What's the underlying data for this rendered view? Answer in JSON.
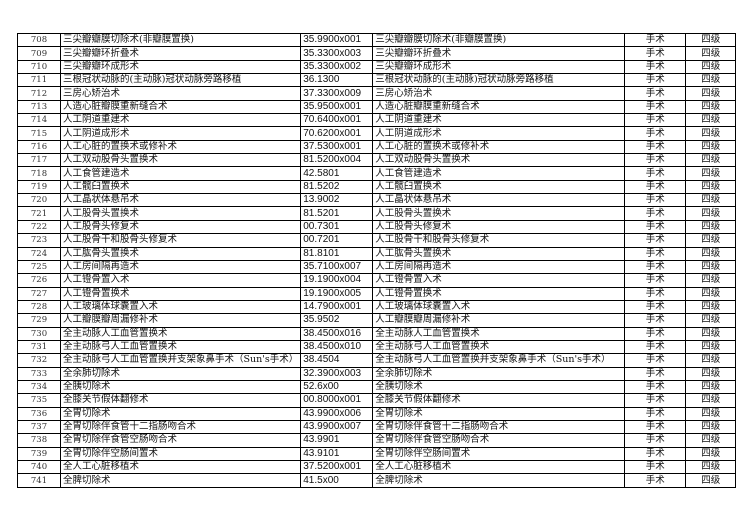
{
  "table": {
    "rows": [
      {
        "no": "708",
        "name": "三尖瓣瓣膜切除术(非瓣膜置换)",
        "code": "35.9900x001",
        "name2": "三尖瓣瓣膜切除术(非瓣膜置换)",
        "type": "手术",
        "grade": "四级"
      },
      {
        "no": "709",
        "name": "三尖瓣瓣环折叠术",
        "code": "35.3300x003",
        "name2": "三尖瓣瓣环折叠术",
        "type": "手术",
        "grade": "四级"
      },
      {
        "no": "710",
        "name": "三尖瓣瓣环成形术",
        "code": "35.3300x002",
        "name2": "三尖瓣瓣环成形术",
        "type": "手术",
        "grade": "四级"
      },
      {
        "no": "711",
        "name": "三根冠状动脉的(主动脉)冠状动脉旁路移植",
        "code": "36.1300",
        "name2": "三根冠状动脉的(主动脉)冠状动脉旁路移植",
        "type": "手术",
        "grade": "四级"
      },
      {
        "no": "712",
        "name": "三房心矫治术",
        "code": "37.3300x009",
        "name2": "三房心矫治术",
        "type": "手术",
        "grade": "四级"
      },
      {
        "no": "713",
        "name": "人造心脏瓣膜重新缝合术",
        "code": "35.9500x001",
        "name2": "人造心脏瓣膜重新缝合术",
        "type": "手术",
        "grade": "四级"
      },
      {
        "no": "714",
        "name": "人工阴道重建术",
        "code": "70.6400x001",
        "name2": "人工阴道重建术",
        "type": "手术",
        "grade": "四级"
      },
      {
        "no": "715",
        "name": "人工阴道成形术",
        "code": "70.6200x001",
        "name2": "人工阴道成形术",
        "type": "手术",
        "grade": "四级"
      },
      {
        "no": "716",
        "name": "人工心脏的置换术或修补术",
        "code": "37.5300x001",
        "name2": "人工心脏的置换术或修补术",
        "type": "手术",
        "grade": "四级"
      },
      {
        "no": "717",
        "name": "人工双动股骨头置换术",
        "code": "81.5200x004",
        "name2": "人工双动股骨头置换术",
        "type": "手术",
        "grade": "四级"
      },
      {
        "no": "718",
        "name": "人工食管建造术",
        "code": "42.5801",
        "name2": "人工食管建造术",
        "type": "手术",
        "grade": "四级"
      },
      {
        "no": "719",
        "name": "人工髋臼置换术",
        "code": "81.5202",
        "name2": "人工髋臼置换术",
        "type": "手术",
        "grade": "四级"
      },
      {
        "no": "720",
        "name": "人工晶状体悬吊术",
        "code": "13.9002",
        "name2": "人工晶状体悬吊术",
        "type": "手术",
        "grade": "四级"
      },
      {
        "no": "721",
        "name": "人工股骨头置换术",
        "code": "81.5201",
        "name2": "人工股骨头置换术",
        "type": "手术",
        "grade": "四级"
      },
      {
        "no": "722",
        "name": "人工股骨头修复术",
        "code": "00.7301",
        "name2": "人工股骨头修复术",
        "type": "手术",
        "grade": "四级"
      },
      {
        "no": "723",
        "name": "人工股骨干和股骨头修复术",
        "code": "00.7201",
        "name2": "人工股骨干和股骨头修复术",
        "type": "手术",
        "grade": "四级"
      },
      {
        "no": "724",
        "name": "人工肱骨头置换术",
        "code": "81.8101",
        "name2": "人工肱骨头置换术",
        "type": "手术",
        "grade": "四级"
      },
      {
        "no": "725",
        "name": "人工房间隔再造术",
        "code": "35.7100x007",
        "name2": "人工房间隔再造术",
        "type": "手术",
        "grade": "四级"
      },
      {
        "no": "726",
        "name": "人工镫骨置入术",
        "code": "19.1900x004",
        "name2": "人工镫骨置入术",
        "type": "手术",
        "grade": "四级"
      },
      {
        "no": "727",
        "name": "人工镫骨置换术",
        "code": "19.1900x005",
        "name2": "人工镫骨置换术",
        "type": "手术",
        "grade": "四级"
      },
      {
        "no": "728",
        "name": "人工玻璃体球囊置入术",
        "code": "14.7900x001",
        "name2": "人工玻璃体球囊置入术",
        "type": "手术",
        "grade": "四级"
      },
      {
        "no": "729",
        "name": "人工瓣膜瓣周漏修补术",
        "code": "35.9502",
        "name2": "人工瓣膜瓣周漏修补术",
        "type": "手术",
        "grade": "四级"
      },
      {
        "no": "730",
        "name": "全主动脉人工血管置换术",
        "code": "38.4500x016",
        "name2": "全主动脉人工血管置换术",
        "type": "手术",
        "grade": "四级"
      },
      {
        "no": "731",
        "name": "全主动脉弓人工血管置换术",
        "code": "38.4500x010",
        "name2": "全主动脉弓人工血管置换术",
        "type": "手术",
        "grade": "四级"
      },
      {
        "no": "732",
        "name": "全主动脉弓人工血管置换并支架象鼻手术（Sun's手术）",
        "code": "38.4504",
        "name2": "全主动脉弓人工血管置换并支架象鼻手术（Sun's手术）",
        "type": "手术",
        "grade": "四级"
      },
      {
        "no": "733",
        "name": "全余肺切除术",
        "code": "32.3900x003",
        "name2": "全余肺切除术",
        "type": "手术",
        "grade": "四级"
      },
      {
        "no": "734",
        "name": "全胰切除术",
        "code": "52.6x00",
        "name2": "全胰切除术",
        "type": "手术",
        "grade": "四级"
      },
      {
        "no": "735",
        "name": "全膝关节假体翻修术",
        "code": "00.8000x001",
        "name2": "全膝关节假体翻修术",
        "type": "手术",
        "grade": "四级"
      },
      {
        "no": "736",
        "name": "全胃切除术",
        "code": "43.9900x006",
        "name2": "全胃切除术",
        "type": "手术",
        "grade": "四级"
      },
      {
        "no": "737",
        "name": "全胃切除伴食管十二指肠吻合术",
        "code": "43.9900x007",
        "name2": "全胃切除伴食管十二指肠吻合术",
        "type": "手术",
        "grade": "四级"
      },
      {
        "no": "738",
        "name": "全胃切除伴食管空肠吻合术",
        "code": "43.9901",
        "name2": "全胃切除伴食管空肠吻合术",
        "type": "手术",
        "grade": "四级"
      },
      {
        "no": "739",
        "name": "全胃切除伴空肠间置术",
        "code": "43.9101",
        "name2": "全胃切除伴空肠间置术",
        "type": "手术",
        "grade": "四级"
      },
      {
        "no": "740",
        "name": "全人工心脏移植术",
        "code": "37.5200x001",
        "name2": "全人工心脏移植术",
        "type": "手术",
        "grade": "四级"
      },
      {
        "no": "741",
        "name": "全脾切除术",
        "code": "41.5x00",
        "name2": "全脾切除术",
        "type": "手术",
        "grade": "四级"
      }
    ]
  }
}
